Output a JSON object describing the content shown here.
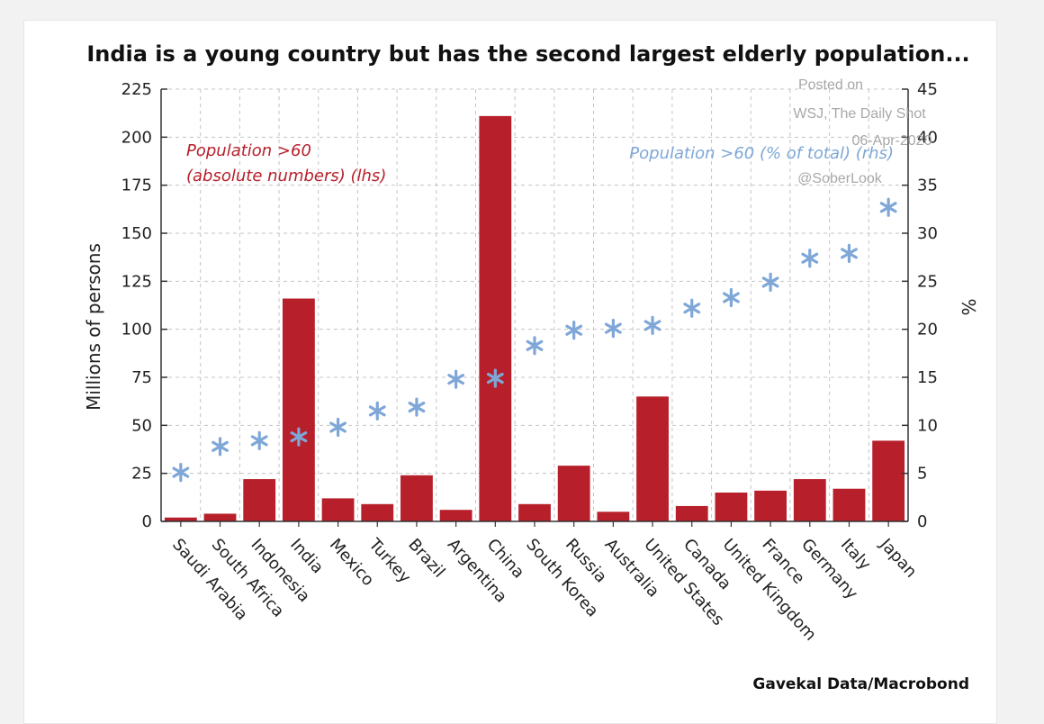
{
  "chart_data": {
    "type": "bar",
    "title": "India is a young country but has the second largest elderly population...",
    "categories": [
      "Saudi Arabia",
      "South Africa",
      "Indonesia",
      "India",
      "Mexico",
      "Turkey",
      "Brazil",
      "Argentina",
      "China",
      "South Korea",
      "Russia",
      "Australia",
      "United States",
      "Canada",
      "United Kingdom",
      "France",
      "Germany",
      "Italy",
      "Japan"
    ],
    "series": [
      {
        "name": "Population >60 (absolute numbers) (lhs)",
        "label_lines": [
          "Population >60",
          "(absolute numbers) (lhs)"
        ],
        "type": "bar",
        "axis": "left",
        "color": "#b7202a",
        "values": [
          2,
          4,
          22,
          116,
          12,
          9,
          24,
          6,
          211,
          9,
          29,
          5,
          65,
          8,
          15,
          16,
          22,
          17,
          42
        ]
      },
      {
        "name": "Population >60 (% of total) (rhs)",
        "type": "scatter",
        "marker": "asterisk",
        "axis": "right",
        "color": "#7ea7d8",
        "values": [
          5.1,
          7.8,
          8.4,
          8.8,
          9.8,
          11.5,
          11.9,
          14.8,
          14.9,
          18.3,
          19.9,
          20.1,
          20.4,
          22.2,
          23.3,
          24.9,
          27.4,
          27.9,
          32.7
        ]
      }
    ],
    "ylabel": "Millions of persons",
    "ylim": [
      0,
      225
    ],
    "yticks": [
      "0",
      "25",
      "50",
      "75",
      "100",
      "125",
      "150",
      "175",
      "200",
      "225"
    ],
    "y2label": "%",
    "y2lim": [
      0,
      45
    ],
    "y2ticks": [
      "0",
      "5",
      "10",
      "15",
      "20",
      "25",
      "30",
      "35",
      "40",
      "45"
    ],
    "grid": true,
    "source": "Gavekal Data/Macrobond"
  },
  "watermark": {
    "line1": "Posted on",
    "line2": "WSJ, The Daily Shot",
    "line3": "06-Apr-2020",
    "line4": "@SoberLook"
  }
}
